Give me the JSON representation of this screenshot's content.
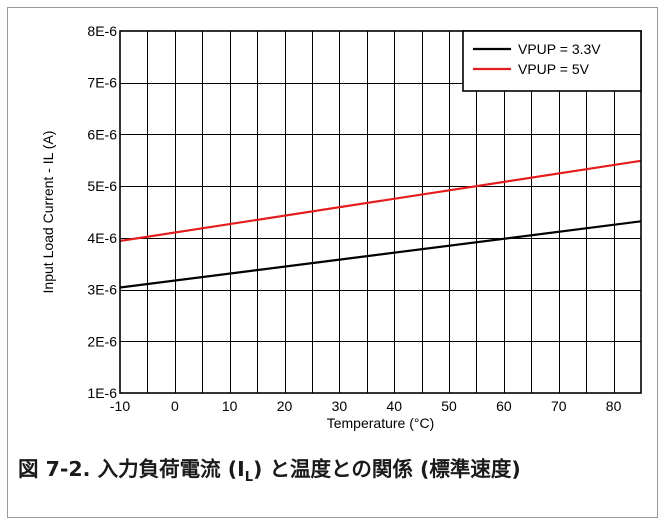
{
  "chart_data": {
    "type": "line",
    "xlabel": "Temperature (°C)",
    "ylabel": "Input Load Current - IL (A)",
    "xlim": [
      -10,
      85
    ],
    "ylim": [
      1e-06,
      8e-06
    ],
    "x_ticks": [
      -10,
      0,
      10,
      20,
      30,
      40,
      50,
      60,
      70,
      80
    ],
    "x_tick_labels": [
      "-10",
      "0",
      "10",
      "20",
      "30",
      "40",
      "50",
      "60",
      "70",
      "80"
    ],
    "y_ticks": [
      1e-06,
      2e-06,
      3e-06,
      4e-06,
      5e-06,
      6e-06,
      7e-06,
      8e-06
    ],
    "y_tick_labels": [
      "1E-6",
      "2E-6",
      "3E-6",
      "4E-6",
      "5E-6",
      "6E-6",
      "7E-6",
      "8E-6"
    ],
    "grid": true,
    "legend_position": "top-right",
    "series": [
      {
        "name": "VPUP = 3.3V",
        "color": "#000000",
        "x": [
          -10,
          85
        ],
        "y": [
          3.04e-06,
          4.32e-06
        ]
      },
      {
        "name": "VPUP = 5V",
        "color": "#e31d1d",
        "x": [
          -10,
          85
        ],
        "y": [
          3.94e-06,
          5.49e-06
        ]
      }
    ]
  },
  "caption": {
    "prefix": "図 7-2. 入力負荷電流 (I",
    "subscript": "L",
    "suffix": ") と温度との関係 (標準速度)"
  }
}
